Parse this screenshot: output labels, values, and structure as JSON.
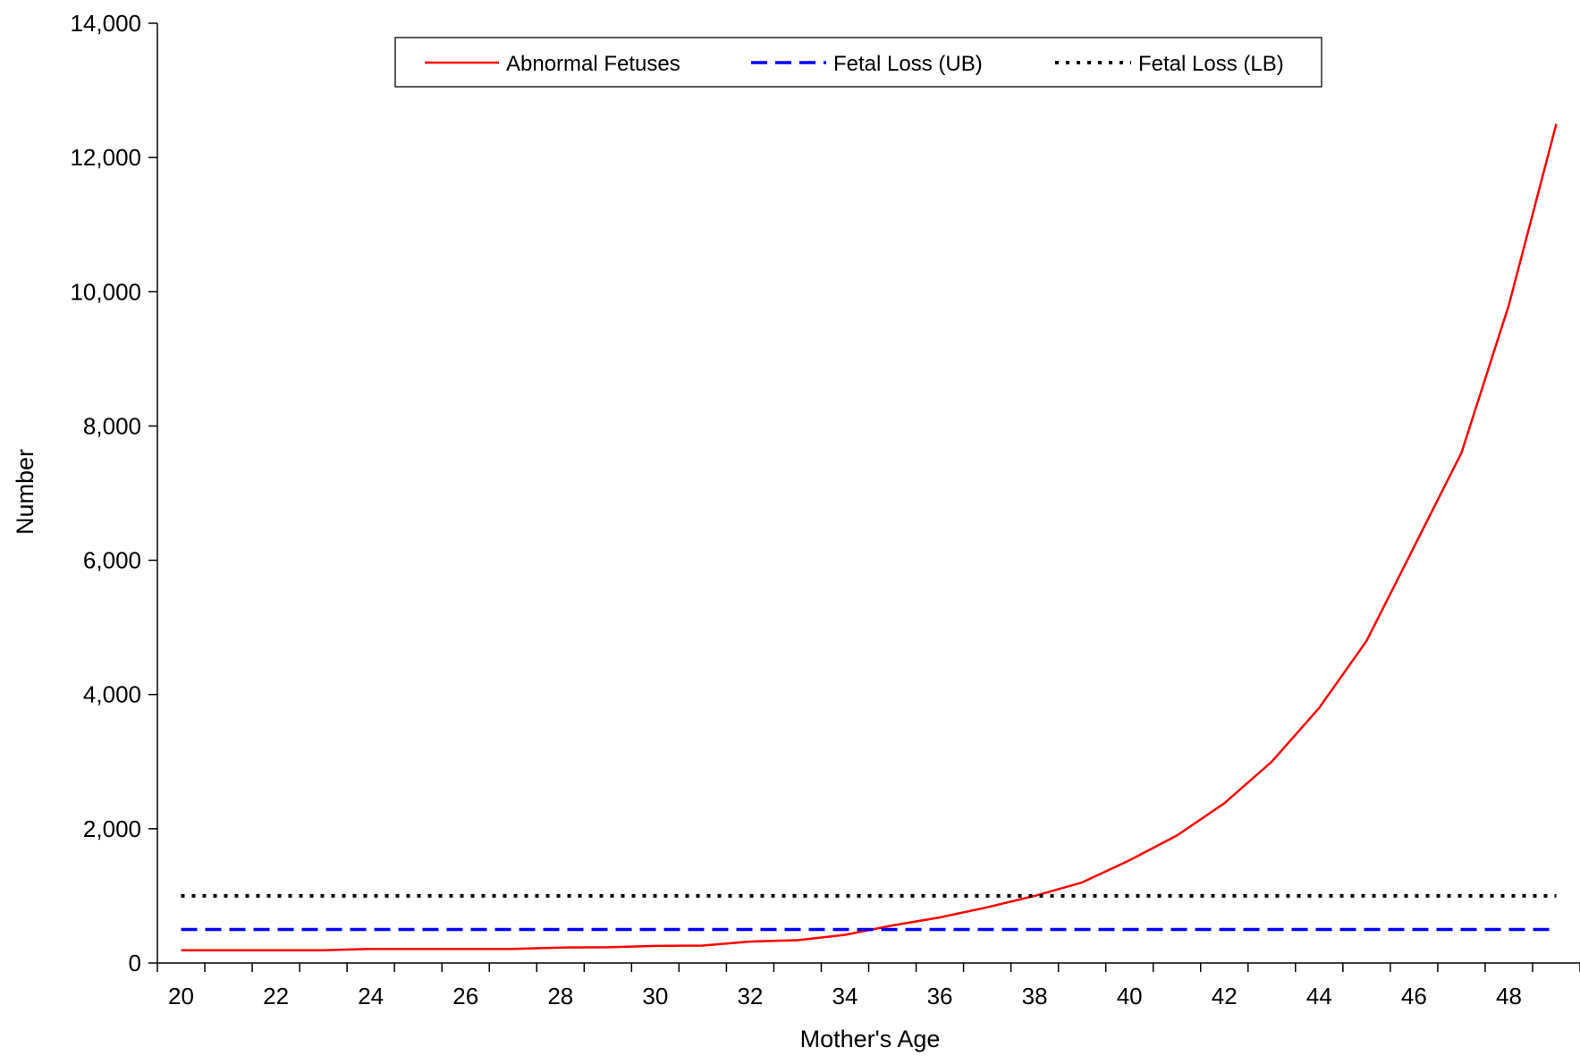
{
  "chart_data": {
    "type": "line",
    "xlabel": "Mother's Age",
    "ylabel": "Number",
    "xlim": [
      19.5,
      49.5
    ],
    "ylim": [
      0,
      14000
    ],
    "x_ticks": [
      20,
      22,
      24,
      26,
      28,
      30,
      32,
      34,
      36,
      38,
      40,
      42,
      44,
      46,
      48
    ],
    "y_ticks": [
      0,
      2000,
      4000,
      6000,
      8000,
      10000,
      12000,
      14000
    ],
    "x_tick_labels": [
      "20",
      "22",
      "24",
      "26",
      "28",
      "30",
      "32",
      "34",
      "36",
      "38",
      "40",
      "42",
      "44",
      "46",
      "48"
    ],
    "y_tick_labels": [
      "0",
      "2,000",
      "4,000",
      "6,000",
      "8,000",
      "10,000",
      "12,000",
      "14,000"
    ],
    "grid": false,
    "legend_position": "top",
    "series": [
      {
        "name": "Abnormal Fetuses",
        "color": "#ff0000",
        "style": "solid",
        "x": [
          20,
          21,
          22,
          23,
          24,
          25,
          26,
          27,
          28,
          29,
          30,
          31,
          32,
          33,
          34,
          35,
          36,
          37,
          38,
          39,
          40,
          41,
          42,
          43,
          44,
          45,
          46,
          47,
          48,
          49
        ],
        "values": [
          190,
          190,
          190,
          190,
          210,
          210,
          210,
          210,
          230,
          235,
          255,
          260,
          320,
          340,
          420,
          560,
          680,
          830,
          1000,
          1200,
          1530,
          1900,
          2380,
          3000,
          3800,
          4800,
          6200,
          7600,
          9800,
          12500
        ]
      },
      {
        "name": "Fetal Loss (UB)",
        "color": "#0000ff",
        "style": "dashed",
        "x": [
          20,
          49
        ],
        "values": [
          500,
          500
        ]
      },
      {
        "name": "Fetal Loss (LB)",
        "color": "#000000",
        "style": "dotted",
        "x": [
          20,
          49
        ],
        "values": [
          1000,
          1000
        ]
      }
    ]
  }
}
